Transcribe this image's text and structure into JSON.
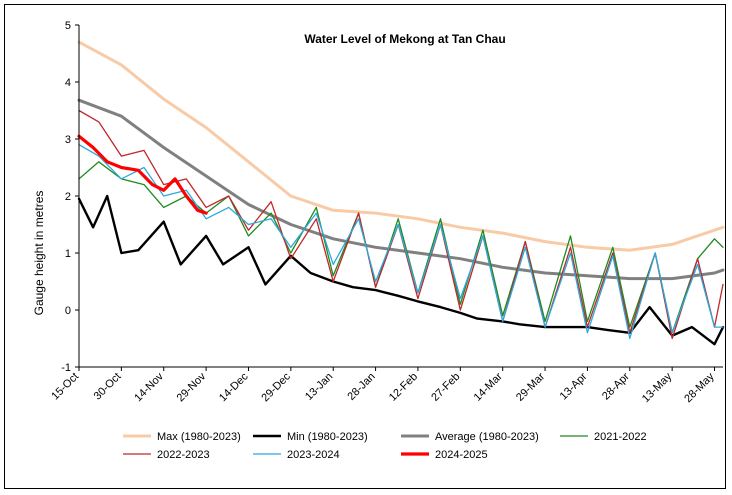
{
  "chart_data": {
    "type": "line",
    "title": "Water Level of Mekong at Tan Chau",
    "xlabel": "",
    "ylabel": "Gauge height in metres",
    "ylim": [
      -1,
      5
    ],
    "yticks": [
      "-1",
      "0",
      "1",
      "2",
      "3",
      "4",
      "5"
    ],
    "x_ticks": [
      "15-Oct",
      "30-Oct",
      "14-Nov",
      "29-Nov",
      "14-Dec",
      "29-Dec",
      "13-Jan",
      "28-Jan",
      "12-Feb",
      "27-Feb",
      "14-Mar",
      "29-Mar",
      "13-Apr",
      "28-Apr",
      "13-May",
      "28-May"
    ],
    "grid": false,
    "legend_position": "bottom",
    "colors": {
      "max": "#f8cba6",
      "min": "#000000",
      "average": "#808080",
      "y2021": "#1f8a1f",
      "y2022": "#c0282a",
      "y2023": "#2ba9e0",
      "y2024": "#ff0000"
    },
    "series": [
      {
        "name": "Max (1980-2023)",
        "key": "max",
        "x": [
          "15-Oct",
          "30-Oct",
          "14-Nov",
          "29-Nov",
          "14-Dec",
          "29-Dec",
          "13-Jan",
          "28-Jan",
          "12-Feb",
          "27-Feb",
          "14-Mar",
          "29-Mar",
          "13-Apr",
          "28-Apr",
          "13-May",
          "28-May",
          "31-May"
        ],
        "values": [
          4.7,
          4.3,
          3.7,
          3.2,
          2.6,
          2.0,
          1.75,
          1.7,
          1.6,
          1.45,
          1.35,
          1.2,
          1.1,
          1.05,
          1.15,
          1.4,
          1.45
        ]
      },
      {
        "name": "Min (1980-2023)",
        "key": "min",
        "x": [
          "15-Oct",
          "20-Oct",
          "25-Oct",
          "30-Oct",
          "5-Nov",
          "14-Nov",
          "20-Nov",
          "29-Nov",
          "5-Dec",
          "14-Dec",
          "20-Dec",
          "29-Dec",
          "5-Jan",
          "13-Jan",
          "20-Jan",
          "28-Jan",
          "5-Feb",
          "12-Feb",
          "20-Feb",
          "27-Feb",
          "5-Mar",
          "14-Mar",
          "20-Mar",
          "29-Mar",
          "5-Apr",
          "13-Apr",
          "20-Apr",
          "28-Apr",
          "5-May",
          "13-May",
          "20-May",
          "28-May",
          "31-May"
        ],
        "values": [
          1.95,
          1.45,
          2.0,
          1.0,
          1.05,
          1.55,
          0.8,
          1.3,
          0.8,
          1.1,
          0.45,
          0.95,
          0.65,
          0.5,
          0.4,
          0.35,
          0.25,
          0.15,
          0.05,
          -0.05,
          -0.15,
          -0.2,
          -0.25,
          -0.3,
          -0.3,
          -0.3,
          -0.35,
          -0.4,
          0.05,
          -0.45,
          -0.3,
          -0.6,
          -0.3
        ]
      },
      {
        "name": "Average (1980-2023)",
        "key": "average",
        "x": [
          "15-Oct",
          "30-Oct",
          "14-Nov",
          "29-Nov",
          "14-Dec",
          "29-Dec",
          "13-Jan",
          "28-Jan",
          "12-Feb",
          "27-Feb",
          "14-Mar",
          "29-Mar",
          "13-Apr",
          "28-Apr",
          "13-May",
          "28-May",
          "31-May"
        ],
        "values": [
          3.68,
          3.4,
          2.85,
          2.35,
          1.85,
          1.5,
          1.25,
          1.1,
          1.0,
          0.9,
          0.75,
          0.65,
          0.6,
          0.55,
          0.55,
          0.65,
          0.7
        ]
      },
      {
        "name": "2021-2022",
        "key": "y2021",
        "x": [
          "15-Oct",
          "22-Oct",
          "30-Oct",
          "7-Nov",
          "14-Nov",
          "22-Nov",
          "29-Nov",
          "7-Dec",
          "14-Dec",
          "22-Dec",
          "29-Dec",
          "7-Jan",
          "13-Jan",
          "22-Jan",
          "28-Jan",
          "5-Feb",
          "12-Feb",
          "20-Feb",
          "27-Feb",
          "7-Mar",
          "14-Mar",
          "22-Mar",
          "29-Mar",
          "7-Apr",
          "13-Apr",
          "22-Apr",
          "28-Apr",
          "7-May",
          "13-May",
          "22-May",
          "28-May",
          "31-May"
        ],
        "values": [
          2.3,
          2.6,
          2.3,
          2.2,
          1.8,
          2.0,
          1.7,
          2.0,
          1.3,
          1.7,
          1.0,
          1.8,
          0.6,
          1.7,
          0.4,
          1.6,
          0.3,
          1.6,
          0.1,
          1.4,
          -0.1,
          1.2,
          -0.2,
          1.3,
          -0.2,
          1.1,
          -0.3,
          1.0,
          -0.4,
          0.9,
          1.25,
          1.1
        ]
      },
      {
        "name": "2022-2023",
        "key": "y2022",
        "x": [
          "15-Oct",
          "22-Oct",
          "30-Oct",
          "7-Nov",
          "14-Nov",
          "22-Nov",
          "29-Nov",
          "7-Dec",
          "14-Dec",
          "22-Dec",
          "29-Dec",
          "7-Jan",
          "13-Jan",
          "22-Jan",
          "28-Jan",
          "5-Feb",
          "12-Feb",
          "20-Feb",
          "27-Feb",
          "7-Mar",
          "14-Mar",
          "22-Mar",
          "29-Mar",
          "7-Apr",
          "13-Apr",
          "22-Apr",
          "28-Apr",
          "7-May",
          "13-May",
          "22-May",
          "28-May",
          "31-May"
        ],
        "values": [
          3.5,
          3.3,
          2.7,
          2.8,
          2.2,
          2.3,
          1.8,
          2.0,
          1.4,
          1.9,
          0.9,
          1.6,
          0.5,
          1.7,
          0.4,
          1.5,
          0.2,
          1.5,
          0.0,
          1.3,
          -0.2,
          1.2,
          -0.3,
          1.1,
          -0.3,
          1.0,
          -0.4,
          1.0,
          -0.5,
          0.9,
          -0.3,
          0.45
        ]
      },
      {
        "name": "2023-2024",
        "key": "y2023",
        "x": [
          "15-Oct",
          "22-Oct",
          "30-Oct",
          "7-Nov",
          "14-Nov",
          "22-Nov",
          "29-Nov",
          "7-Dec",
          "14-Dec",
          "22-Dec",
          "29-Dec",
          "7-Jan",
          "13-Jan",
          "22-Jan",
          "28-Jan",
          "5-Feb",
          "12-Feb",
          "20-Feb",
          "27-Feb",
          "7-Mar",
          "14-Mar",
          "22-Mar",
          "29-Mar",
          "7-Apr",
          "13-Apr",
          "22-Apr",
          "28-Apr",
          "7-May",
          "13-May",
          "22-May",
          "28-May",
          "31-May"
        ],
        "values": [
          2.9,
          2.7,
          2.3,
          2.5,
          2.0,
          2.1,
          1.6,
          1.8,
          1.5,
          1.6,
          1.1,
          1.7,
          0.8,
          1.6,
          0.5,
          1.5,
          0.3,
          1.5,
          0.2,
          1.3,
          -0.2,
          1.1,
          -0.3,
          1.0,
          -0.4,
          0.95,
          -0.5,
          1.0,
          -0.4,
          0.8,
          -0.3,
          -0.3
        ]
      },
      {
        "name": "2024-2025",
        "key": "y2024",
        "x": [
          "15-Oct",
          "20-Oct",
          "25-Oct",
          "30-Oct",
          "5-Nov",
          "10-Nov",
          "14-Nov",
          "18-Nov",
          "22-Nov",
          "26-Nov",
          "29-Nov"
        ],
        "values": [
          3.05,
          2.85,
          2.6,
          2.5,
          2.45,
          2.2,
          2.1,
          2.3,
          2.0,
          1.75,
          1.7
        ]
      }
    ]
  }
}
